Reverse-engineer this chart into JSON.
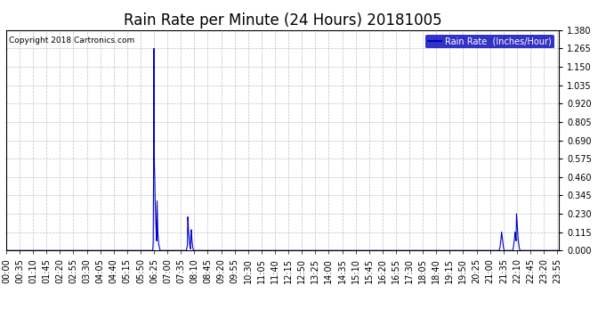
{
  "title": "Rain Rate per Minute (24 Hours) 20181005",
  "copyright": "Copyright 2018 Cartronics.com",
  "legend_label": "Rain Rate  (Inches/Hour)",
  "ylim": [
    0.0,
    1.38
  ],
  "yticks": [
    0.0,
    0.115,
    0.23,
    0.345,
    0.46,
    0.575,
    0.69,
    0.805,
    0.92,
    1.035,
    1.15,
    1.265,
    1.38
  ],
  "line_color": "#0000cc",
  "background_color": "#ffffff",
  "grid_color": "#b0b0b0",
  "title_fontsize": 12,
  "tick_fontsize": 7,
  "total_minutes": 1440,
  "xtick_step": 35,
  "spike_peak_minute": 385,
  "events": [
    {
      "t": 382,
      "v": 0.01
    },
    {
      "t": 383,
      "v": 0.06
    },
    {
      "t": 384,
      "v": 0.54
    },
    {
      "t": 385,
      "v": 1.265
    },
    {
      "t": 386,
      "v": 0.55
    },
    {
      "t": 387,
      "v": 0.46
    },
    {
      "t": 388,
      "v": 0.31
    },
    {
      "t": 389,
      "v": 0.23
    },
    {
      "t": 390,
      "v": 0.16
    },
    {
      "t": 391,
      "v": 0.115
    },
    {
      "t": 392,
      "v": 0.06
    },
    {
      "t": 393,
      "v": 0.31
    },
    {
      "t": 394,
      "v": 0.2
    },
    {
      "t": 395,
      "v": 0.115
    },
    {
      "t": 396,
      "v": 0.08
    },
    {
      "t": 397,
      "v": 0.05
    },
    {
      "t": 398,
      "v": 0.03
    },
    {
      "t": 399,
      "v": 0.02
    },
    {
      "t": 400,
      "v": 0.01
    },
    {
      "t": 470,
      "v": 0.01
    },
    {
      "t": 471,
      "v": 0.02
    },
    {
      "t": 472,
      "v": 0.03
    },
    {
      "t": 473,
      "v": 0.21
    },
    {
      "t": 474,
      "v": 0.18
    },
    {
      "t": 475,
      "v": 0.115
    },
    {
      "t": 476,
      "v": 0.09
    },
    {
      "t": 477,
      "v": 0.06
    },
    {
      "t": 478,
      "v": 0.04
    },
    {
      "t": 479,
      "v": 0.02
    },
    {
      "t": 480,
      "v": 0.01
    },
    {
      "t": 481,
      "v": 0.1
    },
    {
      "t": 482,
      "v": 0.13
    },
    {
      "t": 483,
      "v": 0.09
    },
    {
      "t": 484,
      "v": 0.06
    },
    {
      "t": 485,
      "v": 0.04
    },
    {
      "t": 486,
      "v": 0.02
    },
    {
      "t": 487,
      "v": 0.01
    },
    {
      "t": 1285,
      "v": 0.01
    },
    {
      "t": 1286,
      "v": 0.02
    },
    {
      "t": 1287,
      "v": 0.04
    },
    {
      "t": 1288,
      "v": 0.06
    },
    {
      "t": 1289,
      "v": 0.08
    },
    {
      "t": 1290,
      "v": 0.115
    },
    {
      "t": 1291,
      "v": 0.1
    },
    {
      "t": 1292,
      "v": 0.08
    },
    {
      "t": 1293,
      "v": 0.06
    },
    {
      "t": 1294,
      "v": 0.04
    },
    {
      "t": 1295,
      "v": 0.02
    },
    {
      "t": 1296,
      "v": 0.01
    },
    {
      "t": 1320,
      "v": 0.01
    },
    {
      "t": 1321,
      "v": 0.02
    },
    {
      "t": 1322,
      "v": 0.04
    },
    {
      "t": 1323,
      "v": 0.06
    },
    {
      "t": 1324,
      "v": 0.08
    },
    {
      "t": 1325,
      "v": 0.115
    },
    {
      "t": 1326,
      "v": 0.1
    },
    {
      "t": 1327,
      "v": 0.08
    },
    {
      "t": 1328,
      "v": 0.06
    },
    {
      "t": 1329,
      "v": 0.23
    },
    {
      "t": 1330,
      "v": 0.2
    },
    {
      "t": 1331,
      "v": 0.16
    },
    {
      "t": 1332,
      "v": 0.115
    },
    {
      "t": 1333,
      "v": 0.08
    },
    {
      "t": 1334,
      "v": 0.06
    },
    {
      "t": 1335,
      "v": 0.04
    },
    {
      "t": 1336,
      "v": 0.02
    },
    {
      "t": 1337,
      "v": 0.01
    }
  ]
}
